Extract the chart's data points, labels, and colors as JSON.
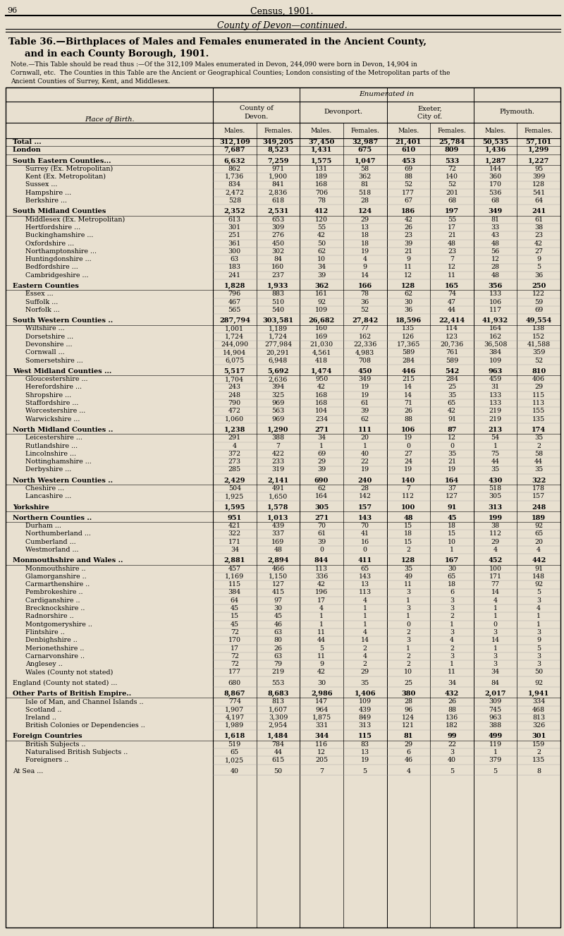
{
  "page_num": "96",
  "page_title": "Census, 1901.",
  "section_title": "County of Devon—continued.",
  "table_title_line1": "Table 36.—Birthplaces of Males and Females enumerated in the Ancient County,",
  "table_title_line2": "and in each County Borough, 1901.",
  "note_line1": "Note.—This Table should be read thus :—Of the 312,109 Males enumerated in Devon, 244,090 were born in Devon, 14,904 in",
  "note_line2": "Cornwall, etc.  The Counties in this Table are the Ancient or Geographical Counties; London consisting of the Metropolitan parts of the",
  "note_line3": "Ancient Counties of Surrey, Kent, and Middlesex.",
  "col_group_labels": [
    "County of\nDevon.",
    "Devonport.",
    "Exeter,\nCity of.",
    "Plymouth."
  ],
  "sub_headers": [
    "Males.",
    "Females.",
    "Males.",
    "Females.",
    "Males.",
    "Females.",
    "Males.",
    "Females."
  ],
  "enumerated_in": "Enumerated in",
  "place_of_birth": "Place of Birth.",
  "bg_color": "#e8e0d0",
  "rows": [
    {
      "label": "Total ...",
      "indent": 0,
      "bold": true,
      "special": "total_top",
      "vals": [
        312109,
        349205,
        37450,
        32987,
        21401,
        25784,
        50535,
        57101
      ]
    },
    {
      "label": "London",
      "indent": 0,
      "bold": true,
      "special": "total_bot",
      "vals": [
        7687,
        8523,
        1431,
        675,
        610,
        809,
        1436,
        1299
      ]
    },
    {
      "label": "",
      "spacer": true
    },
    {
      "label": "South Eastern Counties...",
      "indent": 0,
      "bold": true,
      "vals": [
        6632,
        7259,
        1575,
        1047,
        453,
        533,
        1287,
        1227
      ]
    },
    {
      "label": "Surrey (Ex. Metropolitan)",
      "indent": 1,
      "bold": false,
      "vals": [
        862,
        971,
        131,
        58,
        69,
        72,
        144,
        95
      ]
    },
    {
      "label": "Kent (Ex. Metropolitan)",
      "indent": 1,
      "bold": false,
      "vals": [
        1736,
        1900,
        189,
        362,
        88,
        140,
        360,
        399
      ]
    },
    {
      "label": "Sussex ...",
      "indent": 1,
      "bold": false,
      "vals": [
        834,
        841,
        168,
        81,
        52,
        52,
        170,
        128
      ]
    },
    {
      "label": "Hampshire ...",
      "indent": 1,
      "bold": false,
      "vals": [
        2472,
        2836,
        706,
        518,
        177,
        201,
        536,
        541
      ]
    },
    {
      "label": "Berkshire ...",
      "indent": 1,
      "bold": false,
      "vals": [
        528,
        618,
        78,
        28,
        67,
        68,
        68,
        64
      ]
    },
    {
      "label": "",
      "spacer": true
    },
    {
      "label": "South Midland Counties",
      "indent": 0,
      "bold": true,
      "vals": [
        2352,
        2531,
        412,
        124,
        186,
        197,
        349,
        241
      ]
    },
    {
      "label": "Middlesex (Ex. Metropolitan)",
      "indent": 1,
      "bold": false,
      "vals": [
        613,
        653,
        120,
        29,
        42,
        55,
        81,
        61
      ]
    },
    {
      "label": "Hertfordshire ...",
      "indent": 1,
      "bold": false,
      "vals": [
        301,
        309,
        55,
        13,
        26,
        17,
        33,
        38
      ]
    },
    {
      "label": "Buckinghamshire ...",
      "indent": 1,
      "bold": false,
      "vals": [
        251,
        276,
        42,
        18,
        23,
        21,
        43,
        23
      ]
    },
    {
      "label": "Oxfordshire ...",
      "indent": 1,
      "bold": false,
      "vals": [
        361,
        450,
        50,
        18,
        39,
        48,
        48,
        42
      ]
    },
    {
      "label": "Northamptonshire ...",
      "indent": 1,
      "bold": false,
      "vals": [
        300,
        302,
        62,
        19,
        21,
        23,
        56,
        27
      ]
    },
    {
      "label": "Huntingdonshire ...",
      "indent": 1,
      "bold": false,
      "vals": [
        63,
        84,
        10,
        4,
        9,
        7,
        12,
        9
      ]
    },
    {
      "label": "Bedfordshire ...",
      "indent": 1,
      "bold": false,
      "vals": [
        183,
        160,
        34,
        9,
        11,
        12,
        28,
        5
      ]
    },
    {
      "label": "Cambridgeshire ...",
      "indent": 1,
      "bold": false,
      "vals": [
        241,
        237,
        39,
        14,
        12,
        11,
        48,
        36
      ]
    },
    {
      "label": "",
      "spacer": true
    },
    {
      "label": "Eastern Counties",
      "indent": 0,
      "bold": true,
      "vals": [
        1828,
        1933,
        362,
        166,
        128,
        165,
        356,
        250
      ]
    },
    {
      "label": "Essex ...",
      "indent": 1,
      "bold": false,
      "vals": [
        796,
        883,
        161,
        78,
        62,
        74,
        133,
        122
      ]
    },
    {
      "label": "Suffolk ...",
      "indent": 1,
      "bold": false,
      "vals": [
        467,
        510,
        92,
        36,
        30,
        47,
        106,
        59
      ]
    },
    {
      "label": "Norfolk ...",
      "indent": 1,
      "bold": false,
      "vals": [
        565,
        540,
        109,
        52,
        36,
        44,
        117,
        69
      ]
    },
    {
      "label": "",
      "spacer": true
    },
    {
      "label": "South Western Counties ..",
      "indent": 0,
      "bold": true,
      "vals": [
        287794,
        303581,
        26682,
        27842,
        18596,
        22414,
        41932,
        49554
      ]
    },
    {
      "label": "Wiltshire ...",
      "indent": 1,
      "bold": false,
      "vals": [
        1001,
        1189,
        160,
        77,
        135,
        114,
        164,
        138
      ]
    },
    {
      "label": "Dorsetshire ...",
      "indent": 1,
      "bold": false,
      "vals": [
        1724,
        1724,
        169,
        162,
        126,
        123,
        162,
        152
      ]
    },
    {
      "label": "Devonshire ...",
      "indent": 1,
      "bold": false,
      "vals": [
        244090,
        277984,
        21030,
        22336,
        17365,
        20736,
        36508,
        41588
      ]
    },
    {
      "label": "Cornwall ...",
      "indent": 1,
      "bold": false,
      "vals": [
        14904,
        20291,
        4561,
        4983,
        589,
        761,
        384,
        359
      ]
    },
    {
      "label": "Somersetshire ...",
      "indent": 1,
      "bold": false,
      "vals": [
        6075,
        6948,
        418,
        708,
        284,
        589,
        109,
        52
      ]
    },
    {
      "label": "",
      "spacer": true
    },
    {
      "label": "West Midland Counties ...",
      "indent": 0,
      "bold": true,
      "vals": [
        5517,
        5692,
        1474,
        450,
        446,
        542,
        963,
        810
      ]
    },
    {
      "label": "Gloucestershire ...",
      "indent": 1,
      "bold": false,
      "vals": [
        1704,
        2636,
        950,
        349,
        215,
        284,
        459,
        406
      ]
    },
    {
      "label": "Herefordshire ...",
      "indent": 1,
      "bold": false,
      "vals": [
        243,
        394,
        42,
        19,
        14,
        25,
        31,
        29
      ]
    },
    {
      "label": "Shropshire ...",
      "indent": 1,
      "bold": false,
      "vals": [
        248,
        325,
        168,
        19,
        14,
        35,
        133,
        115
      ]
    },
    {
      "label": "Staffordshire ...",
      "indent": 1,
      "bold": false,
      "vals": [
        790,
        969,
        168,
        61,
        71,
        65,
        133,
        113
      ]
    },
    {
      "label": "Worcestershire ...",
      "indent": 1,
      "bold": false,
      "vals": [
        472,
        563,
        104,
        39,
        26,
        42,
        219,
        155
      ]
    },
    {
      "label": "Warwickshire ...",
      "indent": 1,
      "bold": false,
      "vals": [
        1060,
        969,
        234,
        62,
        88,
        91,
        219,
        135
      ]
    },
    {
      "label": "",
      "spacer": true
    },
    {
      "label": "North Midland Counties ..",
      "indent": 0,
      "bold": true,
      "vals": [
        1238,
        1290,
        271,
        111,
        106,
        87,
        213,
        174
      ]
    },
    {
      "label": "Leicestershire ...",
      "indent": 1,
      "bold": false,
      "vals": [
        291,
        388,
        34,
        20,
        19,
        12,
        54,
        35
      ]
    },
    {
      "label": "Rutlandshire ...",
      "indent": 1,
      "bold": false,
      "vals": [
        4,
        7,
        1,
        1,
        0,
        0,
        1,
        2
      ]
    },
    {
      "label": "Lincolnshire ...",
      "indent": 1,
      "bold": false,
      "vals": [
        372,
        422,
        69,
        40,
        27,
        35,
        75,
        58
      ]
    },
    {
      "label": "Nottinghamshire ...",
      "indent": 1,
      "bold": false,
      "vals": [
        273,
        233,
        29,
        22,
        24,
        21,
        44,
        44
      ]
    },
    {
      "label": "Derbyshire ...",
      "indent": 1,
      "bold": false,
      "vals": [
        285,
        319,
        39,
        19,
        19,
        19,
        35,
        35
      ]
    },
    {
      "label": "",
      "spacer": true
    },
    {
      "label": "North Western Counties ..",
      "indent": 0,
      "bold": true,
      "vals": [
        2429,
        2141,
        690,
        240,
        140,
        164,
        430,
        322
      ]
    },
    {
      "label": "Cheshire ...",
      "indent": 1,
      "bold": false,
      "vals": [
        504,
        491,
        62,
        28,
        7,
        37,
        518,
        178
      ]
    },
    {
      "label": "Lancashire ...",
      "indent": 1,
      "bold": false,
      "vals": [
        1925,
        1650,
        164,
        142,
        112,
        127,
        305,
        157
      ]
    },
    {
      "label": "",
      "spacer": true
    },
    {
      "label": "Yorkshire",
      "indent": 0,
      "bold": true,
      "vals": [
        1595,
        1578,
        305,
        157,
        100,
        91,
        313,
        248
      ]
    },
    {
      "label": "",
      "spacer": true
    },
    {
      "label": "Northern Counties ..",
      "indent": 0,
      "bold": true,
      "vals": [
        951,
        1013,
        271,
        143,
        48,
        45,
        199,
        189
      ]
    },
    {
      "label": "Durham ...",
      "indent": 1,
      "bold": false,
      "vals": [
        421,
        439,
        70,
        70,
        15,
        18,
        38,
        92
      ]
    },
    {
      "label": "Northumberland ...",
      "indent": 1,
      "bold": false,
      "vals": [
        322,
        337,
        61,
        41,
        18,
        15,
        112,
        65
      ]
    },
    {
      "label": "Cumberland ...",
      "indent": 1,
      "bold": false,
      "vals": [
        171,
        169,
        39,
        16,
        15,
        10,
        29,
        20
      ]
    },
    {
      "label": "Westmorland ...",
      "indent": 1,
      "bold": false,
      "vals": [
        34,
        48,
        0,
        0,
        2,
        1,
        4,
        4
      ]
    },
    {
      "label": "",
      "spacer": true
    },
    {
      "label": "Monmouthshire and Wales ..",
      "indent": 0,
      "bold": true,
      "vals": [
        2881,
        2894,
        844,
        411,
        128,
        167,
        452,
        442
      ]
    },
    {
      "label": "Monmouthshire ..",
      "indent": 1,
      "bold": false,
      "vals": [
        457,
        466,
        113,
        65,
        35,
        30,
        100,
        91
      ]
    },
    {
      "label": "Glamorganshire ..",
      "indent": 1,
      "bold": false,
      "vals": [
        1169,
        1150,
        336,
        143,
        49,
        65,
        171,
        148
      ]
    },
    {
      "label": "Carmarthenshire ..",
      "indent": 1,
      "bold": false,
      "vals": [
        115,
        127,
        42,
        13,
        11,
        18,
        77,
        92
      ]
    },
    {
      "label": "Pembrokeshire ..",
      "indent": 1,
      "bold": false,
      "vals": [
        384,
        415,
        196,
        113,
        3,
        6,
        14,
        5
      ]
    },
    {
      "label": "Cardiganshire ..",
      "indent": 1,
      "bold": false,
      "vals": [
        64,
        97,
        17,
        4,
        1,
        3,
        4,
        3
      ]
    },
    {
      "label": "Brecknockshire ..",
      "indent": 1,
      "bold": false,
      "vals": [
        45,
        30,
        4,
        1,
        3,
        3,
        1,
        4
      ]
    },
    {
      "label": "Radnorshire ..",
      "indent": 1,
      "bold": false,
      "vals": [
        15,
        45,
        1,
        1,
        1,
        2,
        1,
        1
      ]
    },
    {
      "label": "Montgomeryshire ..",
      "indent": 1,
      "bold": false,
      "vals": [
        45,
        46,
        1,
        1,
        0,
        1,
        0,
        1
      ]
    },
    {
      "label": "Flintshire ..",
      "indent": 1,
      "bold": false,
      "vals": [
        72,
        63,
        11,
        4,
        2,
        3,
        3,
        3
      ]
    },
    {
      "label": "Denbighshire ..",
      "indent": 1,
      "bold": false,
      "vals": [
        170,
        80,
        44,
        14,
        3,
        4,
        14,
        9
      ]
    },
    {
      "label": "Merionethshire ..",
      "indent": 1,
      "bold": false,
      "vals": [
        17,
        26,
        5,
        2,
        1,
        2,
        1,
        5
      ]
    },
    {
      "label": "Carnarvonshire ..",
      "indent": 1,
      "bold": false,
      "vals": [
        72,
        63,
        11,
        4,
        2,
        3,
        3,
        3
      ]
    },
    {
      "label": "Anglesey ..",
      "indent": 1,
      "bold": false,
      "vals": [
        72,
        79,
        9,
        2,
        2,
        1,
        3,
        3
      ]
    },
    {
      "label": "Wales (County not stated)",
      "indent": 1,
      "bold": false,
      "vals": [
        177,
        219,
        42,
        29,
        10,
        11,
        34,
        50
      ]
    },
    {
      "label": "",
      "spacer": true
    },
    {
      "label": "England (County not stated) ...",
      "indent": 0,
      "bold": false,
      "vals": [
        680,
        553,
        30,
        35,
        25,
        34,
        84,
        92
      ]
    },
    {
      "label": "",
      "spacer": true
    },
    {
      "label": "Other Parts of British Empire..",
      "indent": 0,
      "bold": true,
      "vals": [
        8867,
        8683,
        2986,
        1406,
        380,
        432,
        2017,
        1941
      ]
    },
    {
      "label": "Isle of Man, and Channel Islands ..",
      "indent": 1,
      "bold": false,
      "vals": [
        774,
        813,
        147,
        109,
        28,
        26,
        309,
        334
      ]
    },
    {
      "label": "Scotland ..",
      "indent": 1,
      "bold": false,
      "vals": [
        1907,
        1607,
        964,
        439,
        96,
        88,
        745,
        468
      ]
    },
    {
      "label": "Ireland ..",
      "indent": 1,
      "bold": false,
      "vals": [
        4197,
        3309,
        1875,
        849,
        124,
        136,
        963,
        813
      ]
    },
    {
      "label": "British Colonies or Dependencies ..",
      "indent": 1,
      "bold": false,
      "vals": [
        1989,
        2954,
        331,
        313,
        121,
        182,
        388,
        326
      ]
    },
    {
      "label": "",
      "spacer": true
    },
    {
      "label": "Foreign Countries",
      "indent": 0,
      "bold": true,
      "vals": [
        1618,
        1484,
        344,
        115,
        81,
        99,
        499,
        301
      ]
    },
    {
      "label": "British Subjects ..",
      "indent": 1,
      "bold": false,
      "vals": [
        519,
        784,
        116,
        83,
        29,
        22,
        119,
        159
      ]
    },
    {
      "label": "Naturalised British Subjects ..",
      "indent": 1,
      "bold": false,
      "vals": [
        65,
        44,
        12,
        13,
        6,
        3,
        1,
        2
      ]
    },
    {
      "label": "Foreigners ..",
      "indent": 1,
      "bold": false,
      "vals": [
        1025,
        615,
        205,
        19,
        46,
        40,
        379,
        135
      ]
    },
    {
      "label": "",
      "spacer": true
    },
    {
      "label": "At Sea ...",
      "indent": 0,
      "bold": false,
      "vals": [
        40,
        50,
        7,
        5,
        4,
        5,
        5,
        8
      ]
    }
  ]
}
